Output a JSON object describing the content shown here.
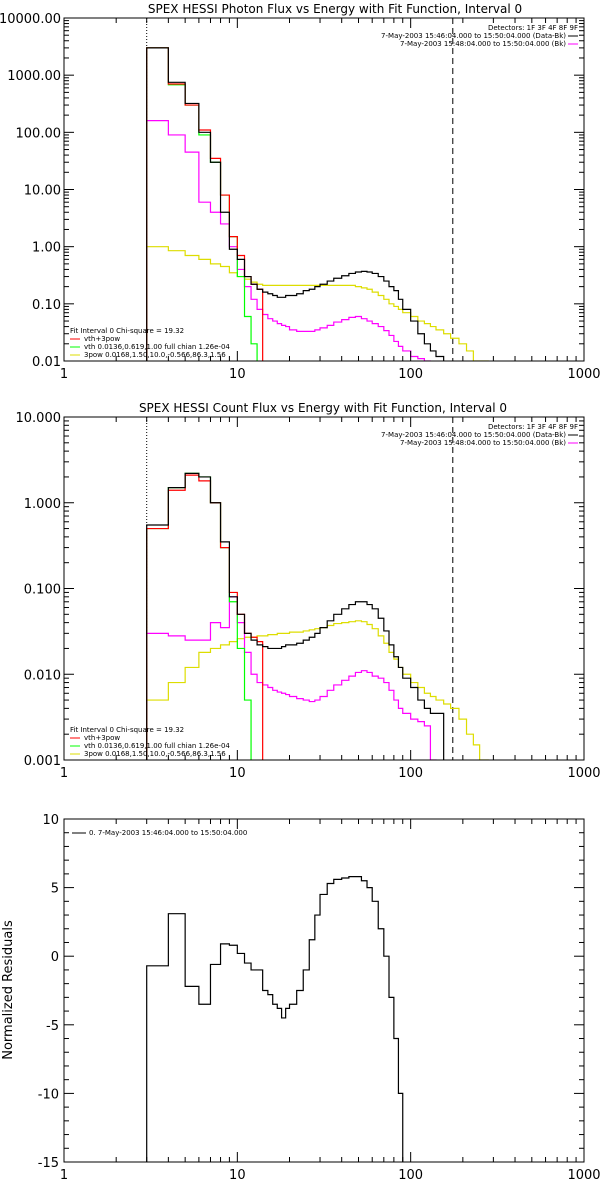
{
  "chart_data": [
    {
      "type": "line",
      "title": "SPEX HESSI Photon Flux vs Energy with Fit Function, Interval 0",
      "xscale": "log",
      "yscale": "log",
      "xlim": [
        1,
        1000
      ],
      "ylim": [
        0.01,
        10000
      ],
      "xticks": [
        "1",
        "10",
        "100",
        "1000"
      ],
      "yticks": [
        "0.01",
        "0.10",
        "1.00",
        "10.00",
        "100.00",
        "1000.00",
        "10000.00"
      ],
      "vlines": [
        {
          "x": 3,
          "style": "dotted"
        },
        {
          "x": 175,
          "style": "dashed"
        }
      ],
      "legend_top_right": {
        "header": "Detectors: 1F 3F 4F 8F 9F",
        "entries": [
          {
            "text": "7-May-2003 15:46:04.000 to 15:50:04.000 (Data-Bk)",
            "color": "#000000"
          },
          {
            "text": "7-May-2003 15:48:04.000 to 15:50:04.000 (Bk)",
            "color": "#ff00ff"
          }
        ]
      },
      "legend_bottom_left": {
        "header": "Fit Interval 0    Chi-square = 19.32",
        "entries": [
          {
            "text": "vth+3pow",
            "color": "#ff0000"
          },
          {
            "text": "vth 0.0136,0.619,1.00  full chian 1.26e-04",
            "color": "#00ff00"
          },
          {
            "text": "3pow 0.0168,1.50,10.0,-0.566,86.3,1.56",
            "color": "#dddd00"
          }
        ]
      },
      "edges": [
        3,
        3.5,
        4,
        4.5,
        5,
        5.5,
        6,
        6.5,
        7,
        7.5,
        8,
        8.5,
        9,
        9.5,
        10,
        10.5,
        11,
        11.5,
        12,
        13,
        14,
        15,
        16,
        17,
        18,
        19,
        20,
        22,
        24,
        26,
        28,
        30,
        33,
        36,
        40,
        44,
        48,
        52,
        56,
        60,
        65,
        70,
        75,
        80,
        85,
        90,
        100,
        110,
        120,
        130,
        140,
        155,
        170,
        190,
        210,
        230,
        250,
        280
      ],
      "series": [
        {
          "name": "Data-Bk",
          "color": "#000000",
          "values": [
            3000,
            3000,
            750,
            750,
            320,
            320,
            100,
            100,
            30,
            30,
            4,
            4,
            0.9,
            0.9,
            0.6,
            0.6,
            0.3,
            0.3,
            0.22,
            0.18,
            0.16,
            0.15,
            0.14,
            0.13,
            0.13,
            0.14,
            0.14,
            0.15,
            0.17,
            0.18,
            0.2,
            0.22,
            0.25,
            0.28,
            0.31,
            0.34,
            0.36,
            0.37,
            0.36,
            0.34,
            0.3,
            0.25,
            0.2,
            0.17,
            0.12,
            0.08,
            0.05,
            0.03,
            0.02,
            0.015,
            0.012
          ]
        },
        {
          "name": "Bk",
          "color": "#ff00ff",
          "values": [
            160,
            160,
            90,
            90,
            45,
            45,
            6,
            6,
            4,
            4,
            2.5,
            2.5,
            1,
            1,
            0.4,
            0.4,
            0.2,
            0.2,
            0.12,
            0.08,
            0.065,
            0.055,
            0.05,
            0.045,
            0.042,
            0.04,
            0.035,
            0.033,
            0.033,
            0.033,
            0.035,
            0.038,
            0.042,
            0.048,
            0.053,
            0.058,
            0.06,
            0.055,
            0.05,
            0.045,
            0.04,
            0.034,
            0.028,
            0.022,
            0.018,
            0.015,
            0.012,
            0.011,
            0.01
          ]
        },
        {
          "name": "vth+3pow",
          "color": "#ff0000",
          "values": [
            3000,
            3000,
            700,
            700,
            300,
            300,
            110,
            110,
            35,
            35,
            8,
            8,
            1.5,
            1.5,
            0.7,
            0.7,
            0.3,
            0.3,
            0.22,
            0.18
          ]
        },
        {
          "name": "vth",
          "color": "#00ff00",
          "values": [
            3000,
            3000,
            680,
            680,
            300,
            300,
            90,
            90,
            30,
            30,
            8,
            8,
            1.5,
            1.5,
            0.3,
            0.3,
            0.06,
            0.06,
            0.02,
            0.008
          ]
        },
        {
          "name": "3pow",
          "color": "#dddd00",
          "values": [
            1,
            1,
            0.85,
            0.85,
            0.7,
            0.7,
            0.6,
            0.6,
            0.5,
            0.5,
            0.45,
            0.45,
            0.35,
            0.35,
            0.3,
            0.3,
            0.27,
            0.27,
            0.24,
            0.22,
            0.21,
            0.21,
            0.21,
            0.21,
            0.21,
            0.21,
            0.21,
            0.21,
            0.21,
            0.21,
            0.21,
            0.21,
            0.21,
            0.21,
            0.21,
            0.21,
            0.2,
            0.19,
            0.18,
            0.16,
            0.14,
            0.12,
            0.1,
            0.09,
            0.08,
            0.07,
            0.06,
            0.05,
            0.045,
            0.04,
            0.035,
            0.03,
            0.025,
            0.02,
            0.015,
            0.01,
            0.01
          ]
        }
      ]
    },
    {
      "type": "line",
      "title": "SPEX HESSI Count Flux vs Energy with Fit Function, Interval 0",
      "xscale": "log",
      "yscale": "log",
      "xlim": [
        1,
        1000
      ],
      "ylim": [
        0.001,
        10
      ],
      "xticks": [
        "1",
        "10",
        "100",
        "1000"
      ],
      "yticks": [
        "0.001",
        "0.010",
        "0.100",
        "1.000",
        "10.000"
      ],
      "vlines": [
        {
          "x": 3,
          "style": "dotted"
        },
        {
          "x": 175,
          "style": "dashed"
        }
      ],
      "legend_top_right": {
        "header": "Detectors: 1F 3F 4F 8F 9F",
        "entries": [
          {
            "text": "7-May-2003 15:46:04.000 to 15:50:04.000 (Data-Bk)",
            "color": "#000000"
          },
          {
            "text": "7-May-2003 15:48:04.000 to 15:50:04.000 (Bk)",
            "color": "#ff00ff"
          }
        ]
      },
      "legend_bottom_left": {
        "header": "Fit Interval 0    Chi-square = 19.32",
        "entries": [
          {
            "text": "vth+3pow",
            "color": "#ff0000"
          },
          {
            "text": "vth 0.0136,0.619,1.00  full chian 1.26e-04",
            "color": "#00ff00"
          },
          {
            "text": "3pow 0.0168,1.50,10.0,-0.566,86.3,1.56",
            "color": "#dddd00"
          }
        ]
      },
      "edges": [
        3,
        3.5,
        4,
        4.5,
        5,
        5.5,
        6,
        6.5,
        7,
        7.5,
        8,
        8.5,
        9,
        9.5,
        10,
        10.5,
        11,
        11.5,
        12,
        13,
        14,
        15,
        16,
        17,
        18,
        19,
        20,
        22,
        24,
        26,
        28,
        30,
        33,
        36,
        40,
        44,
        48,
        52,
        56,
        60,
        65,
        70,
        75,
        80,
        85,
        90,
        100,
        110,
        120,
        130,
        140,
        155,
        170,
        190,
        210,
        230,
        250,
        280
      ],
      "series": [
        {
          "name": "Data-Bk",
          "color": "#000000",
          "values": [
            0.55,
            0.55,
            1.5,
            1.5,
            2.2,
            2.2,
            2.0,
            2.0,
            1.0,
            1.0,
            0.35,
            0.35,
            0.08,
            0.08,
            0.05,
            0.05,
            0.03,
            0.03,
            0.025,
            0.022,
            0.021,
            0.02,
            0.02,
            0.02,
            0.021,
            0.022,
            0.022,
            0.023,
            0.025,
            0.027,
            0.03,
            0.035,
            0.042,
            0.05,
            0.058,
            0.065,
            0.07,
            0.07,
            0.065,
            0.058,
            0.045,
            0.032,
            0.022,
            0.016,
            0.012,
            0.009,
            0.007,
            0.005,
            0.004,
            0.0035,
            0.0035
          ]
        },
        {
          "name": "Bk",
          "color": "#ff00ff",
          "values": [
            0.03,
            0.03,
            0.028,
            0.028,
            0.025,
            0.025,
            0.025,
            0.025,
            0.04,
            0.04,
            0.035,
            0.035,
            0.08,
            0.08,
            0.04,
            0.04,
            0.018,
            0.018,
            0.01,
            0.008,
            0.0075,
            0.007,
            0.0065,
            0.0062,
            0.006,
            0.0058,
            0.0055,
            0.0052,
            0.005,
            0.0048,
            0.005,
            0.0055,
            0.0065,
            0.0075,
            0.0085,
            0.0095,
            0.0105,
            0.011,
            0.0105,
            0.0095,
            0.009,
            0.008,
            0.0065,
            0.005,
            0.004,
            0.0035,
            0.003,
            0.0028,
            0.0025,
            0.001
          ]
        },
        {
          "name": "vth+3pow",
          "color": "#ff0000",
          "values": [
            0.5,
            0.5,
            1.4,
            1.4,
            2.1,
            2.1,
            1.8,
            1.8,
            1.0,
            1.0,
            0.3,
            0.3,
            0.09,
            0.09,
            0.05,
            0.05,
            0.03,
            0.03,
            0.027,
            0.024
          ]
        },
        {
          "name": "vth",
          "color": "#00ff00",
          "values": [
            0.5,
            0.5,
            1.5,
            1.5,
            2.2,
            2.2,
            2.0,
            2.0,
            1.0,
            1.0,
            0.3,
            0.3,
            0.07,
            0.07,
            0.02,
            0.02,
            0.005,
            0.005,
            0.0009
          ]
        },
        {
          "name": "3pow",
          "color": "#dddd00",
          "values": [
            0.005,
            0.005,
            0.008,
            0.008,
            0.012,
            0.012,
            0.018,
            0.018,
            0.02,
            0.02,
            0.022,
            0.022,
            0.024,
            0.024,
            0.026,
            0.026,
            0.027,
            0.027,
            0.027,
            0.028,
            0.028,
            0.029,
            0.029,
            0.03,
            0.03,
            0.03,
            0.031,
            0.031,
            0.032,
            0.033,
            0.034,
            0.035,
            0.037,
            0.039,
            0.04,
            0.041,
            0.042,
            0.041,
            0.038,
            0.034,
            0.028,
            0.023,
            0.018,
            0.015,
            0.012,
            0.01,
            0.008,
            0.007,
            0.006,
            0.0055,
            0.005,
            0.0045,
            0.004,
            0.003,
            0.002,
            0.0015,
            0.001
          ]
        }
      ]
    },
    {
      "type": "line",
      "title": "",
      "xscale": "log",
      "yscale": "linear",
      "xlim": [
        1,
        1000
      ],
      "ylim": [
        -15,
        10
      ],
      "ylabel": "Normalized Residuals",
      "xticks": [
        "1",
        "10",
        "100",
        "1000"
      ],
      "yticks": [
        "-15",
        "-10",
        "-5",
        "0",
        "5",
        "10"
      ],
      "legend": {
        "entries": [
          {
            "text": "0.  7-May-2003 15:46:04.000 to 15:50:04.000",
            "color": "#000000"
          }
        ]
      },
      "edges": [
        3,
        3.5,
        4,
        4.5,
        5,
        5.5,
        6,
        6.5,
        7,
        7.5,
        8,
        8.5,
        9,
        9.5,
        10,
        10.5,
        11,
        11.5,
        12,
        13,
        14,
        15,
        16,
        17,
        18,
        19,
        20,
        22,
        24,
        26,
        28,
        30,
        33,
        36,
        40,
        44,
        48,
        52,
        56,
        60,
        65,
        70,
        75,
        80,
        85,
        90,
        100,
        110,
        120,
        130,
        140,
        155,
        170
      ],
      "series": [
        {
          "name": "0.",
          "color": "#000000",
          "values": [
            -0.7,
            -0.7,
            3.1,
            3.1,
            -2.2,
            -2.2,
            -3.5,
            -3.5,
            -0.6,
            -0.6,
            0.9,
            0.9,
            0.8,
            0.8,
            0.2,
            0.2,
            -0.5,
            -0.5,
            -1,
            -1,
            -2.5,
            -2.8,
            -3.5,
            -3.8,
            -4.5,
            -3.8,
            -3.5,
            -2.5,
            -1,
            1.2,
            3,
            4.5,
            5.3,
            5.6,
            5.7,
            5.8,
            5.8,
            5.5,
            5,
            4,
            2,
            0,
            -3,
            -6,
            -10
          ]
        }
      ]
    }
  ]
}
